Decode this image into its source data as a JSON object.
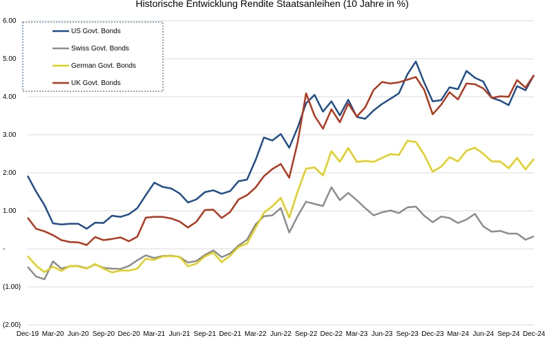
{
  "chart_data": {
    "type": "line",
    "title": "Historische Entwicklung Rendite Staatsanleihen (10 Jahre in %)",
    "xlabel": "",
    "ylabel": "",
    "ylim": [
      -2,
      6
    ],
    "y_ticks": [
      {
        "value": 6,
        "label": "6.00"
      },
      {
        "value": 5,
        "label": "5.00"
      },
      {
        "value": 4,
        "label": "4.00"
      },
      {
        "value": 3,
        "label": "3.00"
      },
      {
        "value": 2,
        "label": "2.00"
      },
      {
        "value": 1,
        "label": "1.00"
      },
      {
        "value": 0,
        "label": "-"
      },
      {
        "value": -1,
        "label": "(1.00)"
      },
      {
        "value": -2,
        "label": "(2.00)"
      }
    ],
    "x_tick_labels": [
      "Dec-19",
      "Mar-20",
      "Jun-20",
      "Sep-20",
      "Dec-20",
      "Mar-21",
      "Jun-21",
      "Sep-21",
      "Dec-21",
      "Mar-22",
      "Jun-22",
      "Sep-22",
      "Dec-22",
      "Mar-23",
      "Jun-23",
      "Sep-23",
      "Dec-23",
      "Mar-24",
      "Jun-24",
      "Sep-24",
      "Dec-24"
    ],
    "grid": "horizontal",
    "legend_position": "top-left",
    "series": [
      {
        "name": "US Govt. Bonds",
        "color": "#1f4e8c",
        "values": [
          1.92,
          1.51,
          1.15,
          0.67,
          0.64,
          0.66,
          0.66,
          0.53,
          0.69,
          0.68,
          0.87,
          0.84,
          0.91,
          1.07,
          1.41,
          1.74,
          1.63,
          1.59,
          1.46,
          1.22,
          1.3,
          1.49,
          1.54,
          1.45,
          1.52,
          1.78,
          1.82,
          2.33,
          2.93,
          2.85,
          3.02,
          2.66,
          3.19,
          3.83,
          4.05,
          3.61,
          3.88,
          3.51,
          3.92,
          3.47,
          3.42,
          3.64,
          3.81,
          3.95,
          4.09,
          4.59,
          4.93,
          4.37,
          3.88,
          3.91,
          4.25,
          4.2,
          4.68,
          4.5,
          4.4,
          3.97,
          3.9,
          3.78,
          4.28,
          4.17,
          4.57
        ]
      },
      {
        "name": "Swiss Govt. Bonds",
        "color": "#8c8c8c",
        "values": [
          -0.47,
          -0.73,
          -0.8,
          -0.33,
          -0.52,
          -0.46,
          -0.45,
          -0.51,
          -0.41,
          -0.5,
          -0.52,
          -0.53,
          -0.45,
          -0.3,
          -0.17,
          -0.24,
          -0.19,
          -0.18,
          -0.21,
          -0.36,
          -0.32,
          -0.16,
          -0.04,
          -0.22,
          -0.12,
          0.09,
          0.24,
          0.64,
          0.86,
          0.88,
          1.07,
          0.43,
          0.86,
          1.24,
          1.18,
          1.13,
          1.62,
          1.28,
          1.47,
          1.28,
          1.07,
          0.88,
          0.96,
          1.01,
          0.94,
          1.09,
          1.11,
          0.87,
          0.7,
          0.85,
          0.81,
          0.68,
          0.77,
          0.92,
          0.59,
          0.45,
          0.47,
          0.4,
          0.4,
          0.24,
          0.33
        ]
      },
      {
        "name": "German Govt. Bonds",
        "color": "#e0cf1b",
        "values": [
          -0.19,
          -0.44,
          -0.61,
          -0.47,
          -0.58,
          -0.45,
          -0.46,
          -0.52,
          -0.4,
          -0.52,
          -0.62,
          -0.57,
          -0.57,
          -0.52,
          -0.26,
          -0.29,
          -0.2,
          -0.19,
          -0.21,
          -0.46,
          -0.39,
          -0.2,
          -0.1,
          -0.35,
          -0.18,
          0.05,
          0.14,
          0.55,
          0.95,
          1.12,
          1.34,
          0.82,
          1.51,
          2.11,
          2.14,
          1.93,
          2.57,
          2.29,
          2.65,
          2.29,
          2.31,
          2.29,
          2.39,
          2.49,
          2.47,
          2.84,
          2.81,
          2.47,
          2.03,
          2.16,
          2.41,
          2.3,
          2.58,
          2.66,
          2.5,
          2.3,
          2.3,
          2.12,
          2.39,
          2.09,
          2.37
        ]
      },
      {
        "name": "UK Govt. Bonds",
        "color": "#b5371b",
        "values": [
          0.82,
          0.53,
          0.46,
          0.36,
          0.23,
          0.18,
          0.17,
          0.1,
          0.31,
          0.23,
          0.26,
          0.3,
          0.2,
          0.32,
          0.82,
          0.84,
          0.84,
          0.8,
          0.72,
          0.56,
          0.71,
          1.02,
          1.03,
          0.81,
          0.97,
          1.3,
          1.41,
          1.61,
          1.91,
          2.1,
          2.23,
          1.87,
          2.8,
          4.09,
          3.5,
          3.16,
          3.67,
          3.33,
          3.82,
          3.48,
          3.72,
          4.18,
          4.39,
          4.35,
          4.38,
          4.45,
          4.52,
          4.18,
          3.54,
          3.79,
          4.12,
          3.93,
          4.35,
          4.33,
          4.22,
          3.97,
          4.01,
          4.0,
          4.44,
          4.24,
          4.57
        ]
      }
    ]
  }
}
